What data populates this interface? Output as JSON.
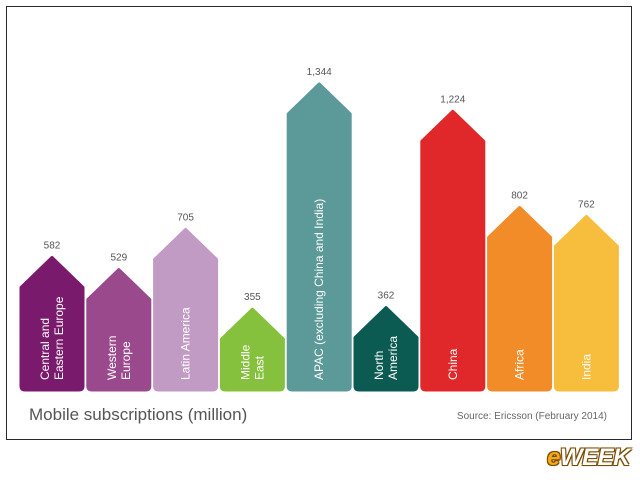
{
  "chart_data": {
    "type": "bar",
    "categories": [
      [
        "Central and",
        "Eastern Europe"
      ],
      [
        "Western",
        "Europe"
      ],
      [
        "Latin America"
      ],
      [
        "Middle",
        "East"
      ],
      [
        "APAC (excluding China and India)"
      ],
      [
        "North",
        "America"
      ],
      [
        "China"
      ],
      [
        "Africa"
      ],
      [
        "India"
      ]
    ],
    "values": [
      582,
      529,
      705,
      355,
      1344,
      362,
      1224,
      802,
      762
    ],
    "value_labels": [
      "582",
      "529",
      "705",
      "355",
      "1,344",
      "362",
      "1,224",
      "802",
      "762"
    ],
    "colors": [
      "#7a1a6c",
      "#9a4a8c",
      "#c29bc4",
      "#86c13d",
      "#5b9a98",
      "#0c5b52",
      "#e0282a",
      "#f28c28",
      "#f7bd3c"
    ],
    "ylim": [
      0,
      1344
    ],
    "grid": false
  },
  "footer": {
    "title": "Mobile subscriptions (million)",
    "source": "Source: Ericsson (February 2014)"
  },
  "logo": {
    "first": "e",
    "rest": "WEEK"
  }
}
